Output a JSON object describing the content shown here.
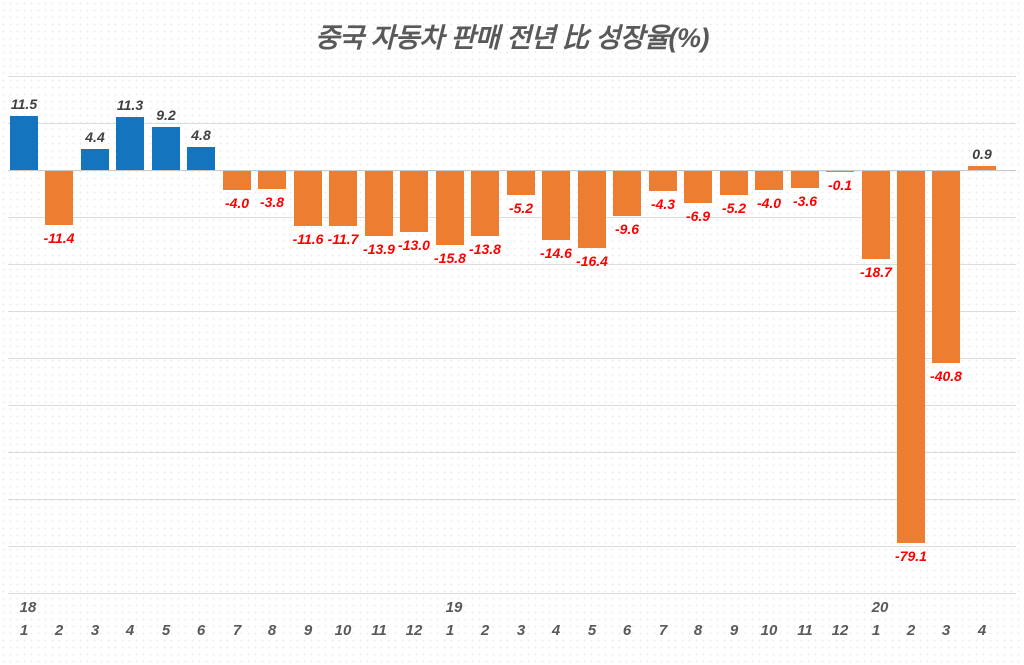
{
  "title": "중국 자동차 판매 전년 比 성장율(%)",
  "chart_data": {
    "type": "bar",
    "title": "중국 자동차 판매 전년 比 성장율(%)",
    "xlabel": "",
    "ylabel": "",
    "ylim": [
      -90,
      20
    ],
    "grid_step": 10,
    "grid": true,
    "legend": false,
    "x_axis_years": [
      "18",
      "19",
      "20"
    ],
    "points": [
      {
        "year": "18",
        "month": "1",
        "value": 11.5,
        "color": "blue"
      },
      {
        "year": "18",
        "month": "2",
        "value": -11.4,
        "color": "orange"
      },
      {
        "year": "18",
        "month": "3",
        "value": 4.4,
        "color": "blue"
      },
      {
        "year": "18",
        "month": "4",
        "value": 11.3,
        "color": "blue"
      },
      {
        "year": "18",
        "month": "5",
        "value": 9.2,
        "color": "blue"
      },
      {
        "year": "18",
        "month": "6",
        "value": 4.8,
        "color": "blue"
      },
      {
        "year": "18",
        "month": "7",
        "value": -4.0,
        "color": "orange"
      },
      {
        "year": "18",
        "month": "8",
        "value": -3.8,
        "color": "orange"
      },
      {
        "year": "18",
        "month": "9",
        "value": -11.6,
        "color": "orange"
      },
      {
        "year": "18",
        "month": "10",
        "value": -11.7,
        "color": "orange"
      },
      {
        "year": "18",
        "month": "11",
        "value": -13.9,
        "color": "orange"
      },
      {
        "year": "18",
        "month": "12",
        "value": -13.0,
        "color": "orange"
      },
      {
        "year": "19",
        "month": "1",
        "value": -15.8,
        "color": "orange"
      },
      {
        "year": "19",
        "month": "2",
        "value": -13.8,
        "color": "orange"
      },
      {
        "year": "19",
        "month": "3",
        "value": -5.2,
        "color": "orange"
      },
      {
        "year": "19",
        "month": "4",
        "value": -14.6,
        "color": "orange"
      },
      {
        "year": "19",
        "month": "5",
        "value": -16.4,
        "color": "orange"
      },
      {
        "year": "19",
        "month": "6",
        "value": -9.6,
        "color": "orange"
      },
      {
        "year": "19",
        "month": "7",
        "value": -4.3,
        "color": "orange"
      },
      {
        "year": "19",
        "month": "8",
        "value": -6.9,
        "color": "orange"
      },
      {
        "year": "19",
        "month": "9",
        "value": -5.2,
        "color": "orange"
      },
      {
        "year": "19",
        "month": "10",
        "value": -4.0,
        "color": "orange"
      },
      {
        "year": "19",
        "month": "11",
        "value": -3.6,
        "color": "orange"
      },
      {
        "year": "19",
        "month": "12",
        "value": -0.1,
        "color": "orange"
      },
      {
        "year": "20",
        "month": "1",
        "value": -18.7,
        "color": "orange"
      },
      {
        "year": "20",
        "month": "2",
        "value": -79.1,
        "color": "orange"
      },
      {
        "year": "20",
        "month": "3",
        "value": -40.8,
        "color": "orange"
      },
      {
        "year": "20",
        "month": "4",
        "value": 0.9,
        "color": "orange"
      }
    ],
    "colors": {
      "blue": "#1574BE",
      "orange": "#ED7D31"
    },
    "label_colors": {
      "positive": "#404040",
      "negative": "#FF0000"
    },
    "axis_label_color": "#595959",
    "gridline_color": "#DCDCDC"
  }
}
